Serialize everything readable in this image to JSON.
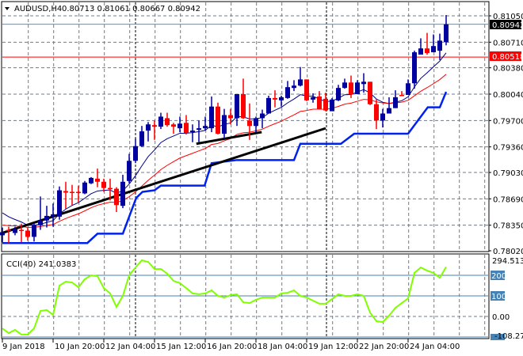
{
  "header": {
    "symbol": "AUDUSD,H4",
    "ohlc": "0.80713 0.81061 0.80667 0.80942"
  },
  "price_axis": {
    "labels": [
      "0.81050",
      "0.80710",
      "0.80380",
      "0.80040",
      "0.79700",
      "0.79360",
      "0.79030",
      "0.78690",
      "0.78350",
      "0.78020"
    ],
    "range": [
      0.7802,
      0.8105
    ],
    "current_price": "0.80942",
    "red_level": "0.80518"
  },
  "colors": {
    "bull": "#0000a0",
    "bear": "#ff0000",
    "grid": "#6e7b8b",
    "cci": "#80ff00",
    "level": "#4682b4",
    "support": "#0022ee",
    "current_label_bg": "#000000",
    "red_label_bg": "#ff0000"
  },
  "time_axis": {
    "labels": [
      "9 Jan 2018",
      "10 Jan 20:00",
      "12 Jan 04:00",
      "15 Jan 12:00",
      "16 Jan 20:00",
      "18 Jan 04:00",
      "19 Jan 12:00",
      "22 Jan 20:00",
      "24 Jan 04:00"
    ]
  },
  "cci": {
    "label": "CCI(40) 241.0383",
    "axis_labels": {
      "max": "294.513",
      "l200": "200",
      "l100": "100",
      "zero": "0.00",
      "min": "-108.2739"
    },
    "range": [
      -108.2739,
      294.513
    ],
    "values": [
      -58,
      -81,
      -65,
      -88,
      -88,
      -58,
      27,
      31,
      8,
      150,
      169,
      165,
      142,
      181,
      200,
      196,
      138,
      112,
      46,
      100,
      200,
      238,
      273,
      265,
      231,
      231,
      208,
      173,
      162,
      138,
      112,
      108,
      112,
      127,
      100,
      92,
      104,
      108,
      69,
      65,
      81,
      92,
      92,
      92,
      112,
      115,
      127,
      100,
      92,
      77,
      62,
      62,
      85,
      108,
      100,
      100,
      108,
      100,
      19,
      -23,
      -27,
      4,
      42,
      65,
      88,
      212,
      238,
      223,
      212,
      188,
      241
    ]
  },
  "chart_data": {
    "type": "candlestick",
    "title": "AUDUSD,H4",
    "ylim": [
      0.7802,
      0.8105
    ],
    "candles": [
      [
        0.7822,
        0.7832,
        0.7813,
        0.7826
      ],
      [
        0.7829,
        0.7833,
        0.7812,
        0.7828
      ],
      [
        0.7825,
        0.7833,
        0.7822,
        0.783
      ],
      [
        0.7829,
        0.7837,
        0.7813,
        0.7828
      ],
      [
        0.7828,
        0.7832,
        0.7815,
        0.782
      ],
      [
        0.782,
        0.7838,
        0.7814,
        0.7835
      ],
      [
        0.7835,
        0.7872,
        0.7829,
        0.7841
      ],
      [
        0.7841,
        0.786,
        0.7832,
        0.7847
      ],
      [
        0.7847,
        0.7863,
        0.7833,
        0.7849
      ],
      [
        0.7846,
        0.7885,
        0.7842,
        0.788
      ],
      [
        0.7879,
        0.7891,
        0.7856,
        0.7877
      ],
      [
        0.7878,
        0.7887,
        0.7861,
        0.7877
      ],
      [
        0.7878,
        0.7886,
        0.7864,
        0.7877
      ],
      [
        0.7876,
        0.7892,
        0.7875,
        0.789
      ],
      [
        0.7889,
        0.7897,
        0.7888,
        0.7896
      ],
      [
        0.7895,
        0.7908,
        0.7884,
        0.7891
      ],
      [
        0.7891,
        0.7895,
        0.7878,
        0.7883
      ],
      [
        0.7883,
        0.7895,
        0.7867,
        0.7882
      ],
      [
        0.7882,
        0.7884,
        0.7852,
        0.7861
      ],
      [
        0.786,
        0.79,
        0.7857,
        0.7891
      ],
      [
        0.7892,
        0.7927,
        0.7889,
        0.7918
      ],
      [
        0.7918,
        0.7947,
        0.7915,
        0.7937
      ],
      [
        0.7937,
        0.7963,
        0.7936,
        0.7956
      ],
      [
        0.7957,
        0.7968,
        0.7943,
        0.7965
      ],
      [
        0.7964,
        0.797,
        0.7945,
        0.7962
      ],
      [
        0.7962,
        0.798,
        0.7959,
        0.7975
      ],
      [
        0.7973,
        0.798,
        0.7962,
        0.7964
      ],
      [
        0.7965,
        0.7967,
        0.7953,
        0.7962
      ],
      [
        0.796,
        0.7975,
        0.7955,
        0.7966
      ],
      [
        0.7967,
        0.7977,
        0.7952,
        0.7954
      ],
      [
        0.7955,
        0.7965,
        0.7942,
        0.7957
      ],
      [
        0.7958,
        0.797,
        0.7942,
        0.796
      ],
      [
        0.796,
        0.7975,
        0.7957,
        0.7963
      ],
      [
        0.796,
        0.8001,
        0.7955,
        0.7988
      ],
      [
        0.7988,
        0.7993,
        0.7952,
        0.7953
      ],
      [
        0.7953,
        0.7985,
        0.7947,
        0.7977
      ],
      [
        0.7977,
        0.7985,
        0.7965,
        0.7973
      ],
      [
        0.7973,
        0.8004,
        0.7963,
        0.8004
      ],
      [
        0.8004,
        0.8024,
        0.7972,
        0.7973
      ],
      [
        0.797,
        0.7992,
        0.7945,
        0.7963
      ],
      [
        0.7963,
        0.7975,
        0.7955,
        0.7973
      ],
      [
        0.7973,
        0.7984,
        0.796,
        0.7979
      ],
      [
        0.7979,
        0.8002,
        0.7979,
        0.7999
      ],
      [
        0.7999,
        0.8009,
        0.7987,
        0.7997
      ],
      [
        0.7996,
        0.8002,
        0.7988,
        0.8
      ],
      [
        0.7999,
        0.8021,
        0.7998,
        0.8013
      ],
      [
        0.8012,
        0.8022,
        0.8008,
        0.8015
      ],
      [
        0.8015,
        0.8039,
        0.8014,
        0.8023
      ],
      [
        0.8023,
        0.8023,
        0.7995,
        0.7996
      ],
      [
        0.7997,
        0.8005,
        0.7993,
        0.8
      ],
      [
        0.8001,
        0.8008,
        0.7985,
        0.7985
      ],
      [
        0.7998,
        0.8006,
        0.7982,
        0.7983
      ],
      [
        0.7982,
        0.7999,
        0.7982,
        0.7997
      ],
      [
        0.7996,
        0.8016,
        0.7995,
        0.8012
      ],
      [
        0.8012,
        0.8024,
        0.8011,
        0.8019
      ],
      [
        0.8019,
        0.8028,
        0.7999,
        0.8004
      ],
      [
        0.8004,
        0.8022,
        0.8004,
        0.8019
      ],
      [
        0.8017,
        0.8031,
        0.8006,
        0.802
      ],
      [
        0.802,
        0.802,
        0.799,
        0.7991
      ],
      [
        0.7991,
        0.7998,
        0.7959,
        0.797
      ],
      [
        0.797,
        0.7985,
        0.7961,
        0.7979
      ],
      [
        0.7979,
        0.8,
        0.7979,
        0.7986
      ],
      [
        0.7986,
        0.8009,
        0.7986,
        0.8
      ],
      [
        0.8003,
        0.8008,
        0.8002,
        0.8002
      ],
      [
        0.8003,
        0.8023,
        0.8003,
        0.8018
      ],
      [
        0.8018,
        0.806,
        0.8011,
        0.8058
      ],
      [
        0.8055,
        0.8076,
        0.8055,
        0.8063
      ],
      [
        0.8063,
        0.8083,
        0.8055,
        0.8057
      ],
      [
        0.8058,
        0.8081,
        0.8058,
        0.8066
      ],
      [
        0.806,
        0.8082,
        0.8048,
        0.8073
      ],
      [
        0.8071,
        0.8106,
        0.8067,
        0.8094
      ]
    ],
    "moving_averages": [
      {
        "name": "fast-ma",
        "type": "ema",
        "period": 8,
        "seed": 0.7858,
        "color": "#00008b"
      },
      {
        "name": "slow-ma",
        "type": "ema",
        "period": 20,
        "seed": 0.7836,
        "color": "#ff0000"
      }
    ],
    "support_line": [
      [
        0,
        0.7812
      ],
      [
        13.4,
        0.7812
      ],
      [
        15,
        0.7824
      ],
      [
        19,
        0.7824
      ],
      [
        21.1,
        0.787
      ],
      [
        22.1,
        0.7878
      ],
      [
        24,
        0.788
      ],
      [
        25,
        0.7886
      ],
      [
        31.9,
        0.7886
      ],
      [
        33,
        0.7915
      ],
      [
        37,
        0.7919
      ],
      [
        46,
        0.7919
      ],
      [
        47,
        0.794
      ],
      [
        53.4,
        0.794
      ],
      [
        55.5,
        0.7953
      ],
      [
        64,
        0.7953
      ],
      [
        67.1,
        0.7987
      ],
      [
        69,
        0.7987
      ],
      [
        70,
        0.8007
      ]
    ],
    "trend_lines": [
      [
        [
          0,
          0.7825
        ],
        [
          51,
          0.796
        ]
      ],
      [
        [
          30.6,
          0.794
        ],
        [
          40.9,
          0.7955
        ]
      ]
    ]
  }
}
